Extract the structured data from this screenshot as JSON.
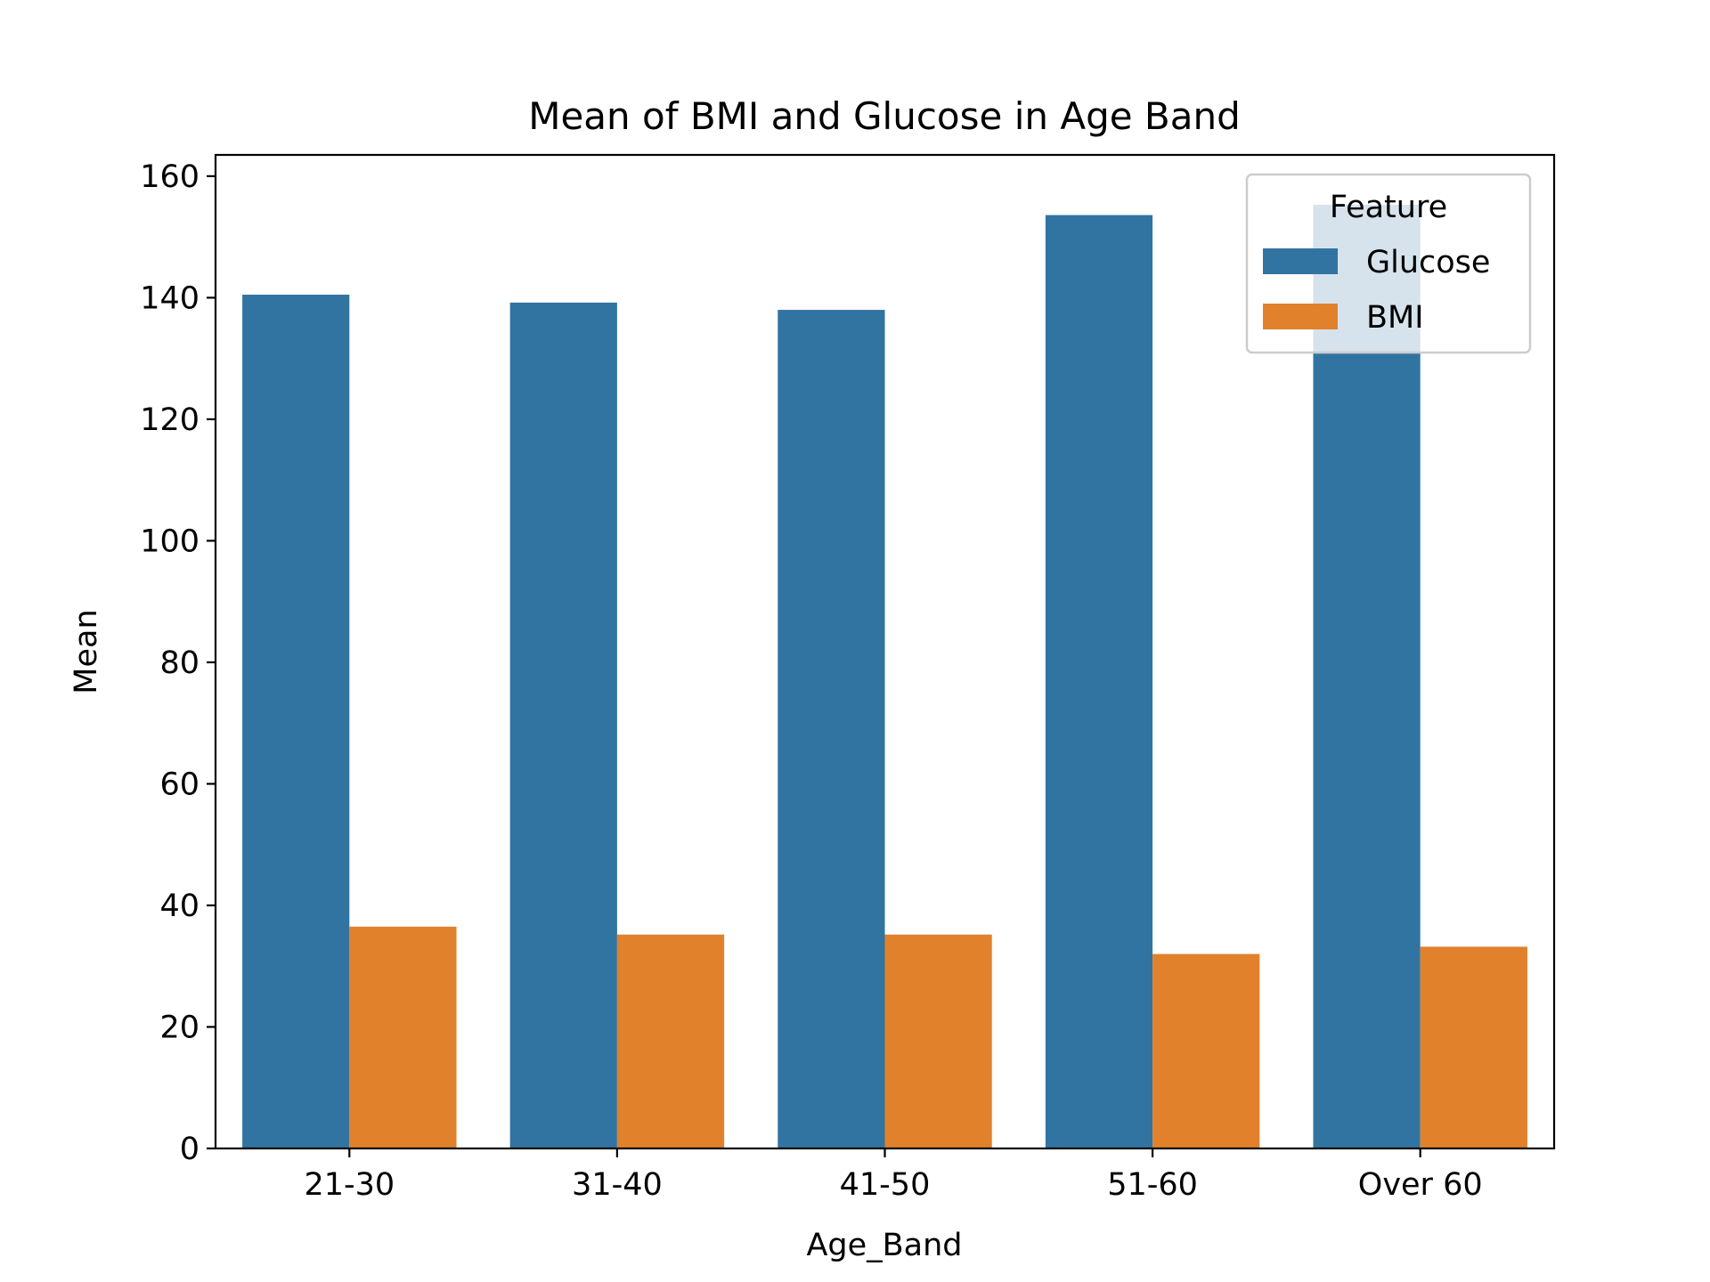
{
  "chart_data": {
    "type": "bar",
    "title": "Mean of BMI and Glucose in Age Band",
    "xlabel": "Age_Band",
    "ylabel": "Mean",
    "categories": [
      "21-30",
      "31-40",
      "41-50",
      "51-60",
      "Over 60"
    ],
    "series": [
      {
        "name": "Glucose",
        "color": "#3274a1",
        "values": [
          140.5,
          139.2,
          138.0,
          153.6,
          155.3
        ]
      },
      {
        "name": "BMI",
        "color": "#e1812c",
        "values": [
          36.5,
          35.2,
          35.2,
          32.0,
          33.2
        ]
      }
    ],
    "ylim": [
      0,
      163.5
    ],
    "yticks": [
      0,
      20,
      40,
      60,
      80,
      100,
      120,
      140,
      160
    ],
    "legend": {
      "title": "Feature",
      "placement": "upper-right"
    },
    "grid": false
  }
}
